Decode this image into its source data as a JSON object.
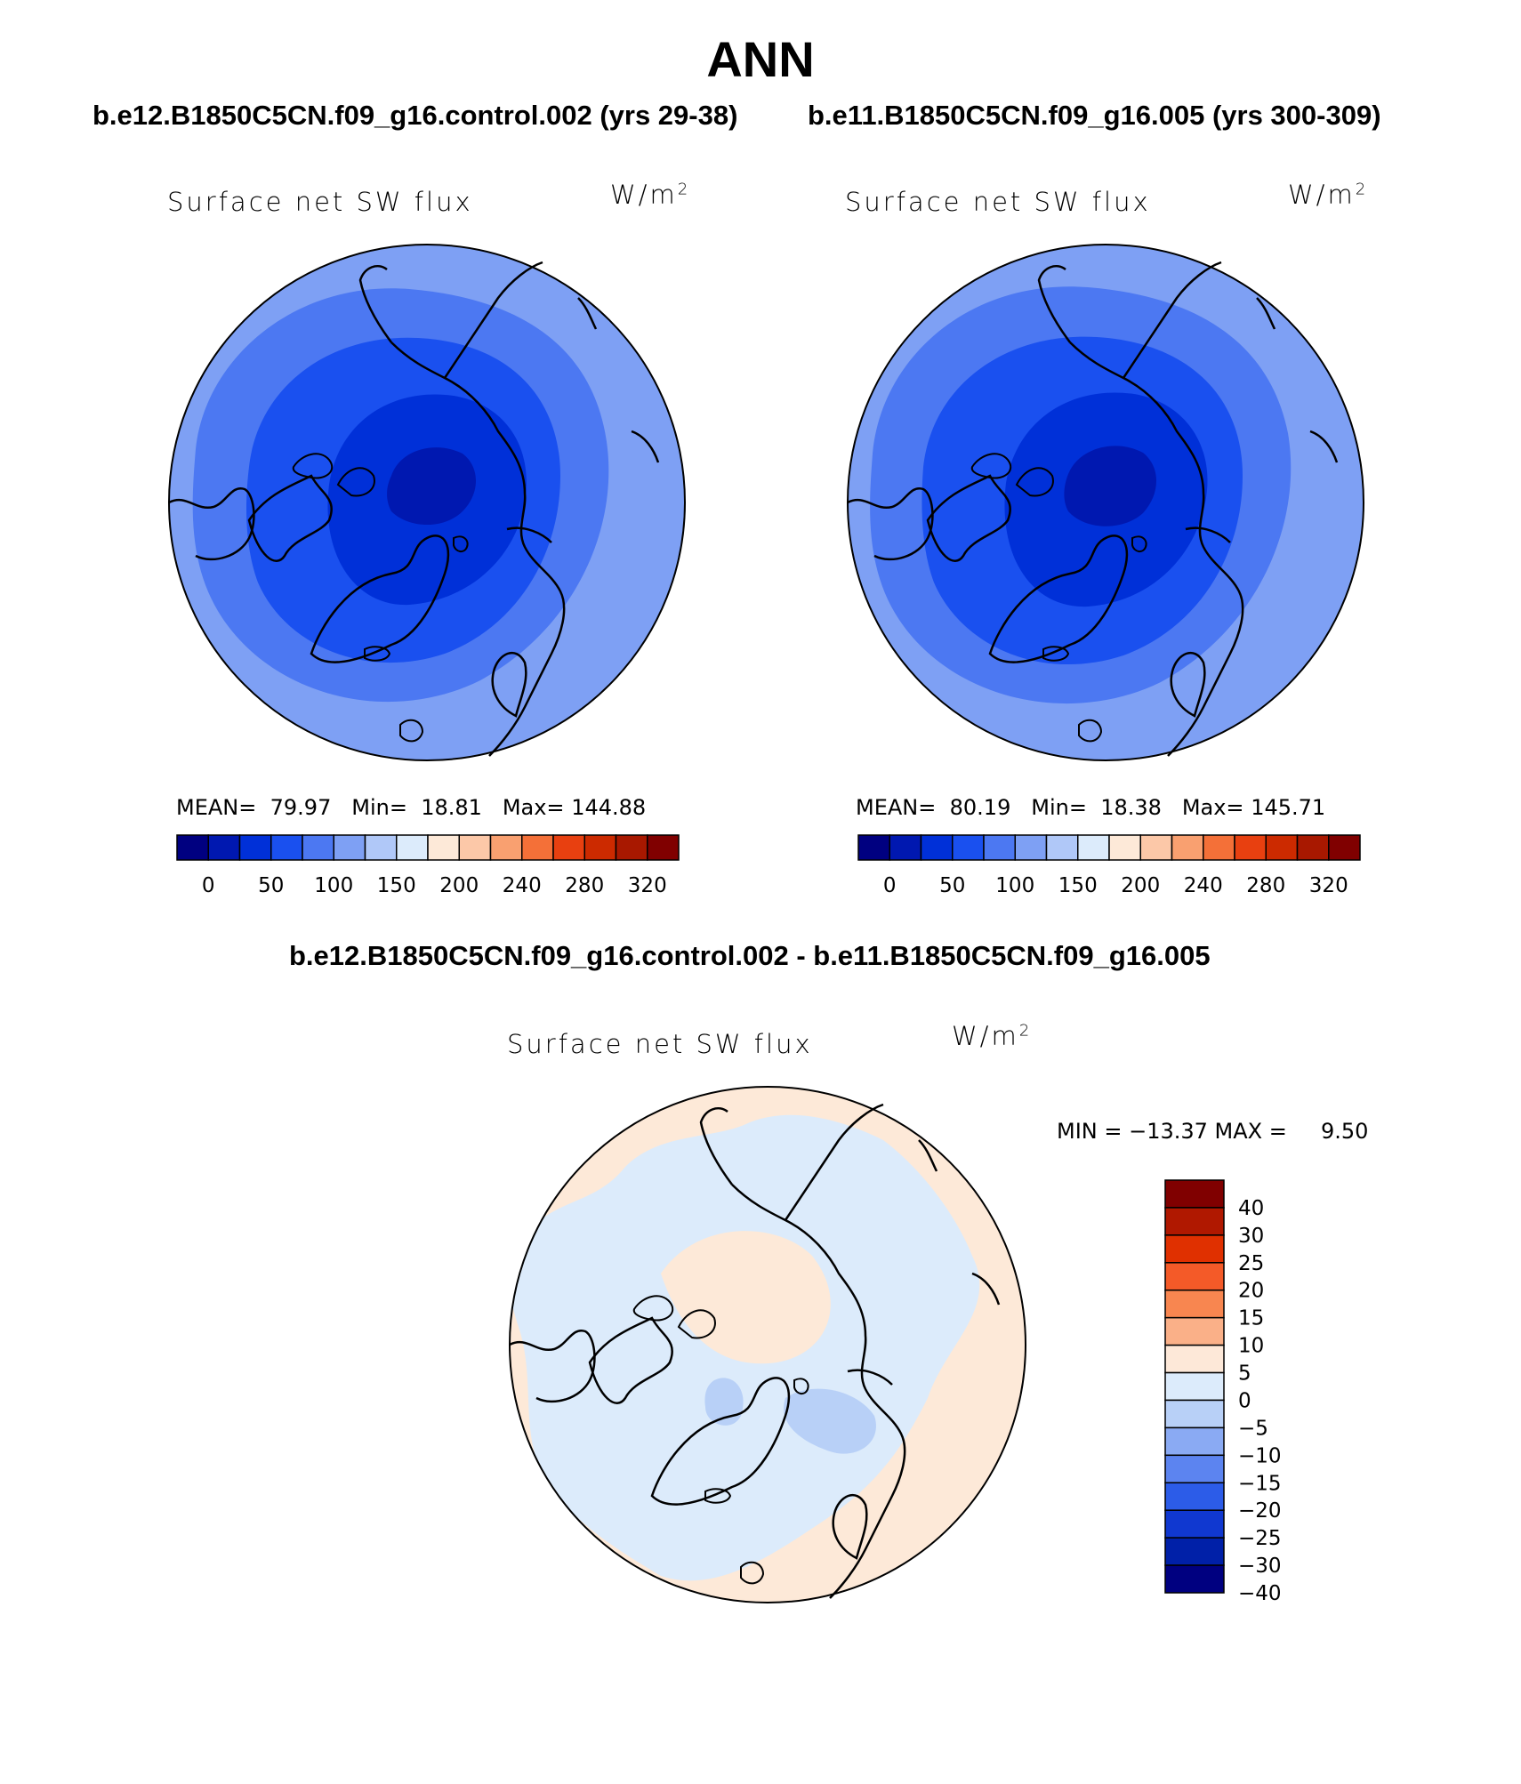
{
  "title": "ANN",
  "panels": [
    {
      "case": "b.e12.B1850C5CN.f09_g16.control.002 (yrs 29-38)",
      "variable": "Surface net SW flux",
      "units_base": "W/m",
      "units_exp": "2",
      "stats": {
        "mean_label": "MEAN=",
        "mean": "79.97",
        "min_label": "Min=",
        "min": "18.81",
        "max_label": "Max=",
        "max": "144.88"
      }
    },
    {
      "case": "b.e11.B1850C5CN.f09_g16.005 (yrs 300-309)",
      "variable": "Surface net SW flux",
      "units_base": "W/m",
      "units_exp": "2",
      "stats": {
        "mean_label": "MEAN=",
        "mean": "80.19",
        "min_label": "Min=",
        "min": "18.38",
        "max_label": "Max=",
        "max": "145.71"
      }
    }
  ],
  "diff": {
    "case": "b.e12.B1850C5CN.f09_g16.control.002 - b.e11.B1850C5CN.f09_g16.005",
    "variable": "Surface net SW flux",
    "units_base": "W/m",
    "units_exp": "2",
    "stats_text": "MIN = −13.37 MAX =     9.50"
  },
  "colorbar_main": {
    "colors": [
      "#000080",
      "#0018b0",
      "#0030d8",
      "#1a50ef",
      "#4c78f2",
      "#7ea0f4",
      "#b0c8f8",
      "#dcebfb",
      "#fde9d8",
      "#fcc8a8",
      "#f9a070",
      "#f47038",
      "#e84010",
      "#cc2a00",
      "#a81800",
      "#800000"
    ],
    "tick_labels": [
      "0",
      "50",
      "100",
      "150",
      "200",
      "240",
      "280",
      "320"
    ]
  },
  "colorbar_diff": {
    "colors": [
      "#800000",
      "#b01800",
      "#e03000",
      "#f45a28",
      "#f88650",
      "#fab088",
      "#fde8d8",
      "#dcebfb",
      "#b8d0f7",
      "#8aaaf3",
      "#5c84f0",
      "#2c5ce8",
      "#1038d0",
      "#0020a8",
      "#000080"
    ],
    "tick_labels": [
      "40",
      "30",
      "25",
      "20",
      "15",
      "10",
      "5",
      "0",
      "−5",
      "−10",
      "−15",
      "−20",
      "−25",
      "−30",
      "−40"
    ]
  },
  "map_colors": {
    "outer": "#7ea0f4",
    "mid": "#4c78f2",
    "inner": "#1a50ef",
    "core": "#0030d8",
    "deep": "#0018b0",
    "diff_pos": "#fde9d8",
    "diff_neg": "#dcebfb",
    "diff_neg2": "#b8d0f7"
  }
}
